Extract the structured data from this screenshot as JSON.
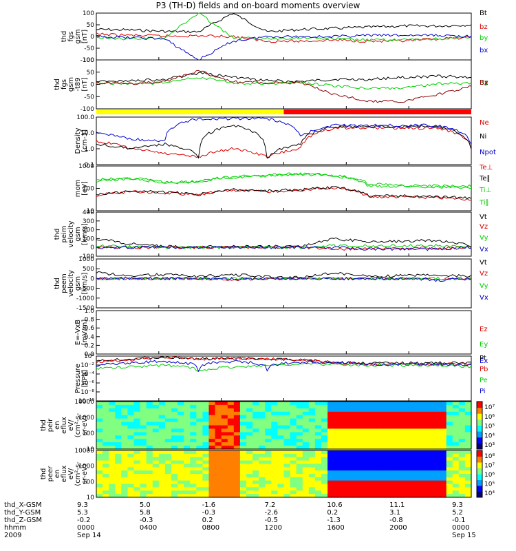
{
  "page": {
    "title": "P3 (TH-D) fields and on-board moments overview"
  },
  "colors": {
    "black": "#000000",
    "red": "#d90000",
    "green": "#00d000",
    "blue": "#0000cc",
    "darkred": "#8b0000",
    "yellow": "#ffff00",
    "barred": "#ff0000"
  },
  "footer": {
    "row_labels": [
      "thd_X-GSM",
      "thd_Y-GSM",
      "thd_Z-GSM",
      "hhmm",
      "2009"
    ],
    "columns": [
      [
        "9.3",
        "5.3",
        "-0.2",
        "0000",
        "Sep 14"
      ],
      [
        "5.0",
        "5.8",
        "-0.3",
        "0400",
        ""
      ],
      [
        "-1.6",
        "-0.3",
        "0.2",
        "0800",
        ""
      ],
      [
        "7.2",
        "-2.6",
        "-0.5",
        "1200",
        ""
      ],
      [
        "10.6",
        "0.2",
        "-1.3",
        "1600",
        ""
      ],
      [
        "11.1",
        "3.1",
        "-0.8",
        "2000",
        ""
      ],
      [
        "9.3",
        "5.2",
        "-0.1",
        "0000",
        "Sep 15"
      ]
    ]
  },
  "chart_data": [
    {
      "type": "line",
      "id": "fgs",
      "ylabel": [
        "thd",
        "fgs",
        "gsm",
        "[nT]"
      ],
      "ylim": [
        -100,
        100
      ],
      "yticks": [
        "100",
        "50",
        "0",
        "-50",
        "-100"
      ],
      "series": [
        {
          "name": "Bt",
          "color": "black",
          "values": [
            30,
            28,
            22,
            20,
            100,
            20,
            30,
            35,
            40,
            45,
            45,
            50
          ]
        },
        {
          "name": "bz",
          "color": "red",
          "values": [
            10,
            5,
            2,
            3,
            0,
            -20,
            -20,
            -15,
            -20,
            -20,
            -10,
            -5
          ]
        },
        {
          "name": "by",
          "color": "green",
          "values": [
            -5,
            -10,
            -5,
            100,
            -5,
            -10,
            -5,
            -10,
            -15,
            -15,
            -10,
            -5
          ]
        },
        {
          "name": "bx",
          "color": "blue",
          "values": [
            0,
            -5,
            -10,
            -100,
            -20,
            0,
            0,
            0,
            5,
            5,
            5,
            0
          ]
        }
      ]
    },
    {
      "type": "line",
      "id": "fgs-t89",
      "ylabel": [
        "thd",
        "fgs",
        "gsm",
        "-t89",
        "[nT]"
      ],
      "ylim": [
        -125,
        100
      ],
      "yticks": [
        "100",
        "50",
        "0",
        "-50",
        "-100"
      ],
      "series": [
        {
          "name": "Bz",
          "color": "black",
          "values": [
            0,
            5,
            10,
            40,
            20,
            5,
            0,
            10,
            10,
            20,
            25,
            20
          ]
        },
        {
          "name": "By",
          "color": "green",
          "values": [
            -5,
            -10,
            -5,
            20,
            -5,
            -10,
            -5,
            -20,
            -30,
            -30,
            -10,
            -5
          ]
        },
        {
          "name": "Bx",
          "color": "darkred",
          "values": [
            -5,
            -8,
            0,
            50,
            0,
            -5,
            -5,
            -60,
            -90,
            -90,
            -60,
            -20
          ]
        }
      ]
    },
    {
      "type": "bar",
      "id": "region-bar",
      "segments": [
        {
          "from": 0,
          "to": 0.5,
          "color": "yellow"
        },
        {
          "from": 0.5,
          "to": 1,
          "color": "barred"
        }
      ]
    },
    {
      "type": "line",
      "id": "density",
      "yscale": "log",
      "ylabel": [
        "Density",
        "[cm-3]"
      ],
      "ylim": [
        0.1,
        100
      ],
      "yticks": [
        "100.0",
        "10.0",
        "1.0",
        "0.1"
      ],
      "series": [
        {
          "name": "Ne",
          "color": "red",
          "values": [
            3,
            1,
            0.5,
            0.3,
            1,
            0.3,
            1,
            20,
            20,
            20,
            20,
            1
          ]
        },
        {
          "name": "Ni",
          "color": "black",
          "values": [
            2,
            1,
            2,
            0.3,
            30,
            0.2,
            2,
            25,
            25,
            25,
            25,
            1
          ]
        },
        {
          "name": "Npot",
          "color": "blue",
          "values": [
            10,
            4,
            3,
            80,
            80,
            80,
            5,
            30,
            30,
            30,
            30,
            2
          ]
        }
      ]
    },
    {
      "type": "line",
      "id": "temperature",
      "yscale": "log",
      "ylabel": [
        "mom",
        "[eV]"
      ],
      "ylim": [
        5,
        15000
      ],
      "yticks": [
        "1000",
        "100",
        "10"
      ],
      "series": [
        {
          "name": "Te⊥",
          "color": "red",
          "values": [
            80,
            150,
            120,
            80,
            200,
            150,
            200,
            300,
            60,
            60,
            50,
            40
          ]
        },
        {
          "name": "Te∥",
          "color": "black",
          "values": [
            90,
            160,
            140,
            90,
            220,
            170,
            220,
            330,
            70,
            70,
            60,
            50
          ]
        },
        {
          "name": "Ti⊥",
          "color": "green",
          "values": [
            1000,
            1500,
            700,
            900,
            2000,
            2500,
            3500,
            2500,
            400,
            400,
            350,
            300
          ]
        },
        {
          "name": "Ti∥",
          "color": "green",
          "values": [
            1300,
            1700,
            800,
            1000,
            2200,
            2800,
            3800,
            2800,
            600,
            500,
            450,
            400
          ]
        }
      ]
    },
    {
      "type": "line",
      "id": "velocity-peim",
      "ylabel": [
        "thd",
        "peim",
        "velocity",
        "gsm",
        "[km/s]"
      ],
      "ylim": [
        -100,
        400
      ],
      "yticks": [
        "400",
        "300",
        "200",
        "100",
        "0",
        "-100"
      ],
      "series": [
        {
          "name": "Vt",
          "color": "black",
          "values": [
            100,
            40,
            10,
            5,
            10,
            10,
            10,
            100,
            60,
            70,
            80,
            20
          ]
        },
        {
          "name": "Vz",
          "color": "red",
          "values": [
            0,
            0,
            0,
            0,
            0,
            0,
            0,
            -20,
            -10,
            -10,
            -10,
            0
          ]
        },
        {
          "name": "Vy",
          "color": "green",
          "values": [
            20,
            10,
            0,
            0,
            0,
            0,
            0,
            20,
            20,
            20,
            20,
            5
          ]
        },
        {
          "name": "Vx",
          "color": "blue",
          "values": [
            0,
            0,
            0,
            0,
            0,
            0,
            0,
            0,
            -20,
            -20,
            -20,
            0
          ]
        }
      ]
    },
    {
      "type": "line",
      "id": "velocity-peem",
      "ylabel": [
        "thd",
        "peem",
        "velocity",
        "gsm",
        "[km/s]"
      ],
      "ylim": [
        -1500,
        1000
      ],
      "yticks": [
        "1000",
        "500",
        "0",
        "-500",
        "-1000",
        "-1500"
      ],
      "series": [
        {
          "name": "Vt",
          "color": "black",
          "values": [
            300,
            150,
            200,
            100,
            200,
            100,
            50,
            300,
            100,
            150,
            200,
            100
          ]
        },
        {
          "name": "Vz",
          "color": "red",
          "values": [
            0,
            0,
            0,
            0,
            -50,
            0,
            0,
            0,
            0,
            0,
            0,
            0
          ]
        },
        {
          "name": "Vy",
          "color": "green",
          "values": [
            0,
            0,
            0,
            0,
            0,
            0,
            0,
            0,
            0,
            0,
            0,
            0
          ]
        },
        {
          "name": "Vx",
          "color": "blue",
          "values": [
            0,
            0,
            0,
            0,
            0,
            0,
            0,
            0,
            0,
            0,
            -100,
            0
          ]
        }
      ]
    },
    {
      "type": "line",
      "id": "efield",
      "ylabel": [
        "E=-VxB",
        "[mV/m]"
      ],
      "ylim": [
        0,
        1
      ],
      "yticks": [
        "1.0",
        "0.8",
        "0.6",
        "0.4",
        "0.2",
        "0.0"
      ],
      "series": [
        {
          "name": "Ez",
          "color": "red",
          "values": []
        },
        {
          "name": "Ey",
          "color": "green",
          "values": []
        },
        {
          "name": "Ex",
          "color": "blue",
          "values": []
        }
      ]
    },
    {
      "type": "line",
      "id": "pressure",
      "yscale": "log",
      "ylabel": [
        "Pressure",
        "[nPa]"
      ],
      "ylim": [
        1e-10,
        10
      ],
      "yticks": [
        "10⁰",
        "10⁻²",
        "10⁻⁴",
        "10⁻⁶",
        "10⁻⁸",
        "10⁻¹⁰"
      ],
      "series": [
        {
          "name": "Pt",
          "color": "black",
          "values": [
            0.5,
            2,
            5,
            2,
            3,
            2,
            1,
            0.3,
            0.2,
            0.2,
            0.2,
            0.2
          ]
        },
        {
          "name": "Pb",
          "color": "red",
          "values": [
            0.3,
            1,
            5,
            2,
            3,
            2,
            1,
            0.2,
            0.1,
            0.1,
            0.1,
            0.1
          ]
        },
        {
          "name": "Pe",
          "color": "green",
          "values": [
            0.01,
            0.02,
            0.05,
            0.001,
            0.02,
            0.05,
            0.1,
            0.1,
            0.05,
            0.05,
            0.05,
            0.02
          ]
        },
        {
          "name": "Pi",
          "color": "blue",
          "values": [
            0.05,
            0.2,
            0.5,
            0.0005,
            0.5,
            0.0005,
            0.3,
            0.3,
            0.1,
            0.1,
            0.1,
            0.05
          ]
        }
      ]
    },
    {
      "type": "heatmap",
      "id": "peir-spectrogram",
      "ylabel": [
        "thd",
        "peir",
        "en",
        "eflux",
        "eV/",
        "(cm²-s-",
        "sr-eV)"
      ],
      "yticks": [
        "10000",
        "1000",
        "100",
        "10"
      ],
      "colorbar_ticks": [
        "10⁷",
        "10⁶",
        "10⁵",
        "10⁴",
        "10³"
      ]
    },
    {
      "type": "heatmap",
      "id": "peer-spectrogram",
      "ylabel": [
        "thd",
        "peer",
        "en",
        "eflux",
        "eV/",
        "(cm²-s-",
        "sr-eV)"
      ],
      "yticks": [
        "10000",
        "1000",
        "100",
        "10"
      ],
      "colorbar_ticks": [
        "10⁸",
        "10⁷",
        "10⁶",
        "10⁵",
        "10⁴"
      ]
    }
  ]
}
